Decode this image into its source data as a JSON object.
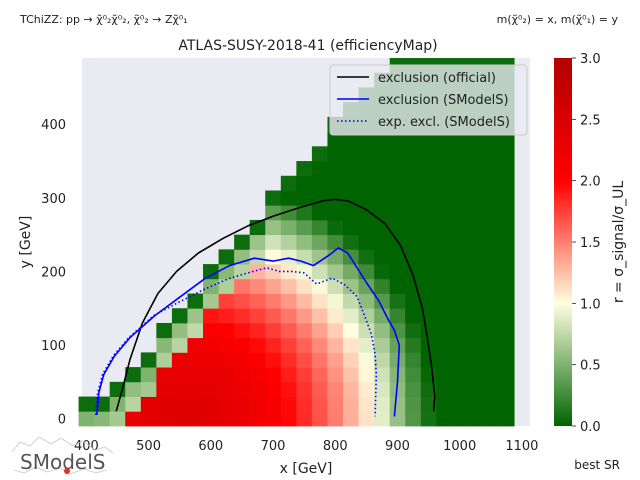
{
  "header": {
    "process": "TChiZZ: pp → χ̃⁰₂χ̃⁰₂, χ̃⁰₂ → Zχ̃⁰₁",
    "mass_convention": "m(χ̃⁰₂) = x, m(χ̃⁰₁) = y"
  },
  "footer": {
    "best_sr": "best SR",
    "logo_text": "SModelS"
  },
  "colors": {
    "official": "#000000",
    "smodels": "#0000ff",
    "expected": "#0000ff",
    "bg": "#eaeaf2"
  },
  "chart_data": {
    "type": "heatmap",
    "title": "ATLAS-SUSY-2018-41 (efficiencyMap)",
    "xlabel": "x [GeV]",
    "ylabel": "y [GeV]",
    "xlim": [
      393,
      1113
    ],
    "ylim": [
      -10,
      490
    ],
    "xticks": [
      400,
      500,
      600,
      700,
      800,
      900,
      1000,
      1100
    ],
    "yticks": [
      0,
      100,
      200,
      300,
      400
    ],
    "colorbar": {
      "label": "r = σ_signal/σ_UL",
      "min": 0,
      "max": 3,
      "ticks": [
        0.0,
        0.5,
        1.0,
        1.5,
        2.0,
        2.5,
        3.0
      ],
      "colormap": [
        "#006400",
        "#ffffe0",
        "#ff0000",
        "#b30000"
      ]
    },
    "legend": {
      "position": "top-right",
      "entries": [
        "exclusion (official)",
        "exclusion (SModelS)",
        "exp. excl. (SModelS)"
      ]
    },
    "grid": {
      "x_start": 400,
      "x_step": 25,
      "y_step": 20,
      "x_count": 28,
      "y_max": 480,
      "diagonal_x": [
        400,
        420,
        440,
        460,
        480,
        500,
        520,
        540,
        560,
        580,
        600,
        620,
        640,
        660,
        680,
        700,
        720,
        740,
        760,
        780,
        800,
        820,
        840,
        860,
        880,
        900,
        920,
        940,
        960,
        980,
        1000,
        1020,
        1040,
        1060,
        1080,
        1100,
        1125
      ],
      "diagonal_y": [
        20,
        20,
        40,
        40,
        80,
        80,
        120,
        140,
        160,
        180,
        200,
        220,
        240,
        260,
        280,
        300,
        320,
        340,
        360,
        380,
        400,
        420,
        440,
        460,
        480,
        480,
        480,
        480,
        480,
        480,
        480,
        480,
        480,
        480,
        480,
        480,
        480
      ]
    },
    "peak_r": 2.2,
    "series": [
      {
        "name": "exclusion (official)",
        "style": "solid",
        "x": [
          448,
          458,
          470,
          490,
          515,
          545,
          580,
          620,
          660,
          700,
          740,
          780,
          800,
          820,
          850,
          880,
          905,
          925,
          940,
          948,
          955,
          960,
          958
        ],
        "y": [
          10,
          40,
          80,
          130,
          170,
          200,
          225,
          245,
          262,
          275,
          286,
          296,
          298,
          296,
          284,
          265,
          235,
          195,
          150,
          110,
          70,
          30,
          10
        ]
      },
      {
        "name": "exclusion (SModelS)",
        "style": "solid",
        "x": [
          417,
          420,
          428,
          445,
          470,
          510,
          550,
          590,
          630,
          670,
          700,
          725,
          745,
          765,
          790,
          805,
          820,
          850,
          870,
          885,
          895,
          903,
          900,
          895
        ],
        "y": [
          5,
          35,
          60,
          85,
          110,
          140,
          165,
          190,
          208,
          218,
          214,
          218,
          214,
          208,
          222,
          232,
          225,
          185,
          160,
          135,
          120,
          100,
          50,
          3
        ]
      },
      {
        "name": "exp. excl. (SModelS)",
        "style": "dotted",
        "x": [
          415,
          418,
          426,
          443,
          468,
          508,
          548,
          588,
          628,
          668,
          690,
          710,
          730,
          750,
          770,
          795,
          815,
          835,
          848,
          858,
          864,
          866,
          864
        ],
        "y": [
          5,
          35,
          60,
          85,
          110,
          140,
          158,
          175,
          190,
          200,
          205,
          200,
          200,
          198,
          183,
          191,
          182,
          166,
          138,
          115,
          88,
          60,
          3
        ]
      }
    ]
  }
}
